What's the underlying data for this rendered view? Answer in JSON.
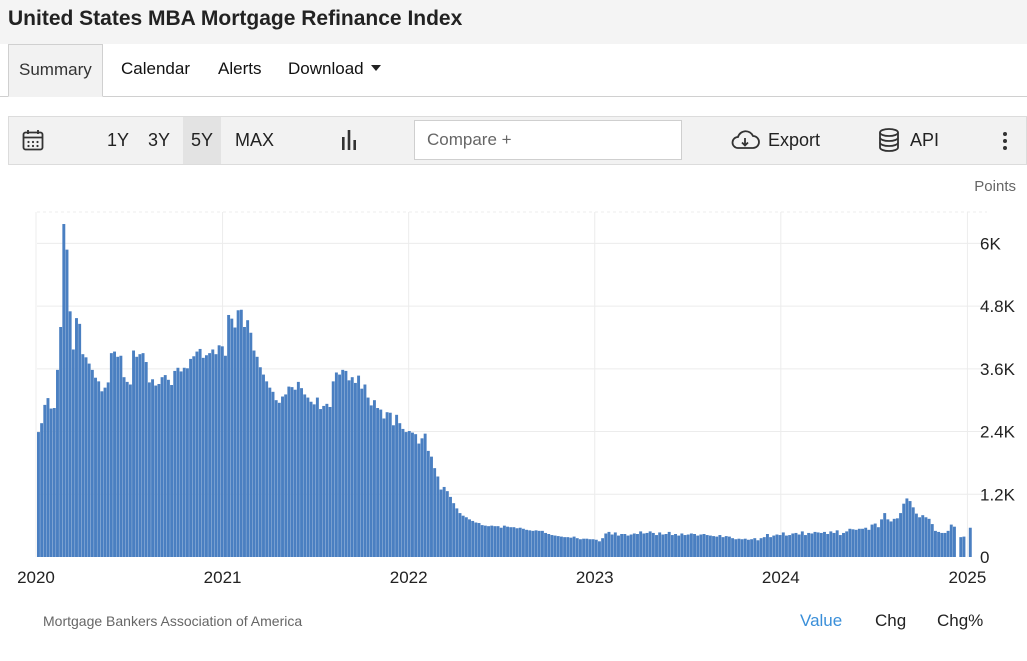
{
  "header": {
    "title": "United States MBA Mortgage Refinance Index"
  },
  "tabs": [
    {
      "label": "Summary",
      "active": true
    },
    {
      "label": "Calendar"
    },
    {
      "label": "Alerts"
    },
    {
      "label": "Download"
    }
  ],
  "toolbar": {
    "calendar_icon": "calendar-icon",
    "ranges": [
      "1Y",
      "3Y",
      "5Y",
      "MAX"
    ],
    "active_range": "5Y",
    "chart_type_icon": "bar-chart-icon",
    "compare_placeholder": "Compare +",
    "export_label": "Export",
    "export_icon": "cloud-download-icon",
    "api_label": "API",
    "api_icon": "database-icon",
    "more_icon": "more-vertical-icon"
  },
  "footer": {
    "source": "Mortgage Bankers Association of America",
    "views": [
      "Value",
      "Chg",
      "Chg%"
    ],
    "active_view": "Value"
  },
  "chart_data": {
    "type": "bar",
    "unit_label": "Points",
    "bar_color": "#4a7fc1",
    "x_range": [
      "2020-01-03",
      "2025-01-10"
    ],
    "x_ticks": [
      "2020",
      "2021",
      "2022",
      "2023",
      "2024",
      "2025"
    ],
    "ylim": [
      0,
      6600
    ],
    "y_ticks": [
      {
        "value": 0,
        "label": "0"
      },
      {
        "value": 1200,
        "label": "1.2K"
      },
      {
        "value": 2400,
        "label": "2.4K"
      },
      {
        "value": 3600,
        "label": "3.6K"
      },
      {
        "value": 4800,
        "label": "4.8K"
      },
      {
        "value": 6000,
        "label": "6K"
      }
    ],
    "grid": true,
    "values": [
      2390,
      2560,
      2910,
      3040,
      2840,
      2850,
      3580,
      4400,
      6370,
      5880,
      4700,
      3970,
      4570,
      4460,
      3880,
      3820,
      3700,
      3580,
      3430,
      3360,
      3170,
      3240,
      3340,
      3900,
      3930,
      3830,
      3850,
      3440,
      3350,
      3300,
      3950,
      3830,
      3880,
      3900,
      3730,
      3340,
      3400,
      3280,
      3310,
      3440,
      3480,
      3390,
      3290,
      3560,
      3620,
      3550,
      3620,
      3610,
      3790,
      3840,
      3930,
      3980,
      3810,
      3860,
      3900,
      3970,
      3880,
      4050,
      4030,
      3850,
      4630,
      4560,
      4390,
      4720,
      4730,
      4400,
      4530,
      4290,
      3950,
      3830,
      3630,
      3490,
      3360,
      3240,
      3160,
      3000,
      2950,
      3070,
      3110,
      3260,
      3250,
      3200,
      3350,
      3230,
      3110,
      3050,
      2970,
      2920,
      3050,
      2830,
      2890,
      2930,
      2870,
      3360,
      3530,
      3490,
      3580,
      3560,
      3380,
      3440,
      3330,
      3470,
      3220,
      3300,
      3050,
      2900,
      3000,
      2850,
      2820,
      2650,
      2770,
      2760,
      2520,
      2720,
      2560,
      2450,
      2390,
      2410,
      2380,
      2350,
      2170,
      2270,
      2360,
      2030,
      1920,
      1700,
      1540,
      1290,
      1340,
      1260,
      1150,
      1030,
      930,
      840,
      790,
      760,
      720,
      690,
      660,
      650,
      610,
      600,
      590,
      600,
      590,
      590,
      560,
      600,
      580,
      570,
      570,
      550,
      560,
      540,
      520,
      510,
      500,
      510,
      500,
      500,
      460,
      440,
      420,
      410,
      400,
      390,
      380,
      380,
      370,
      390,
      360,
      340,
      350,
      350,
      340,
      340,
      330,
      300,
      360,
      450,
      480,
      430,
      470,
      410,
      440,
      440,
      410,
      430,
      450,
      440,
      490,
      450,
      460,
      490,
      460,
      420,
      470,
      430,
      440,
      480,
      420,
      440,
      410,
      450,
      420,
      430,
      450,
      440,
      410,
      430,
      440,
      420,
      410,
      400,
      390,
      420,
      380,
      400,
      390,
      360,
      340,
      350,
      340,
      350,
      330,
      340,
      360,
      320,
      360,
      380,
      440,
      380,
      410,
      430,
      420,
      470,
      410,
      420,
      450,
      460,
      430,
      490,
      420,
      460,
      450,
      480,
      470,
      460,
      480,
      440,
      490,
      460,
      510,
      420,
      460,
      490,
      540,
      530,
      520,
      540,
      540,
      560,
      520,
      620,
      640,
      570,
      720,
      840,
      720,
      680,
      730,
      740,
      840,
      1020,
      1120,
      1070,
      950,
      830,
      760,
      800,
      760,
      730,
      630,
      500,
      480,
      460,
      460,
      500,
      620,
      580,
      0,
      380,
      390,
      0,
      560
    ]
  }
}
